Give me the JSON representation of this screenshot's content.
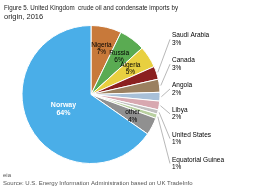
{
  "chart_data": {
    "type": "pie",
    "title": "Figure 5. United Kingdom  crude oil and condensate imports by\norigin, 2016",
    "categories": [
      "Nigeria",
      "Russia",
      "Algeria",
      "Saudi Arabia",
      "Canada",
      "Angola",
      "Libya",
      "United States",
      "Equatorial Guinea",
      "other",
      "Norway"
    ],
    "values": [
      7,
      6,
      5,
      3,
      3,
      2,
      2,
      1,
      1,
      4,
      64
    ],
    "value_labels": [
      "7%",
      "6%",
      "5%",
      "3%",
      "3%",
      "2%",
      "2%",
      "1%",
      "1%",
      "4%",
      "64%"
    ],
    "colors": [
      "#c8793a",
      "#5aab52",
      "#e8d040",
      "#8b2020",
      "#9b8060",
      "#a8c0d8",
      "#d8a8b0",
      "#c0c0c0",
      "#b8d0a0",
      "#909090",
      "#4aaee8"
    ],
    "data_labels": true,
    "annotations": [
      "eia",
      "Source: U.S. Energy Information Administration based on UK TradeInfo"
    ]
  }
}
